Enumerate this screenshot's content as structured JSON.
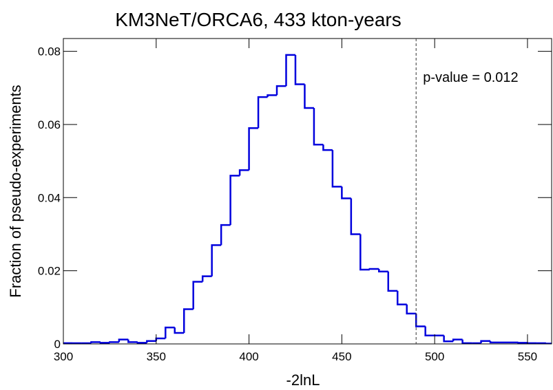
{
  "chart_data": {
    "type": "histogram",
    "title": "KM3NeT/ORCA6, 433 kton-years",
    "x_label": "-2lnL",
    "y_label": "Fraction of pseudo-experiments",
    "annotation": "p-value = 0.012",
    "marker_x": 490,
    "color": "#0000dd",
    "bins": [
      300,
      305,
      310,
      315,
      320,
      325,
      330,
      335,
      340,
      345,
      350,
      355,
      360,
      365,
      370,
      375,
      380,
      385,
      390,
      395,
      400,
      405,
      410,
      415,
      420,
      425,
      430,
      435,
      440,
      445,
      450,
      455,
      460,
      465,
      470,
      475,
      480,
      485,
      490,
      495,
      500,
      505,
      510,
      515,
      520,
      525,
      530,
      535,
      540,
      545,
      550,
      555,
      560,
      565
    ],
    "values": [
      0.0002,
      0.0002,
      0.0002,
      0.0005,
      0.0003,
      0.0005,
      0.0012,
      0.0005,
      0.0003,
      0.0008,
      0.0015,
      0.0045,
      0.003,
      0.0095,
      0.017,
      0.0185,
      0.027,
      0.0325,
      0.046,
      0.0475,
      0.059,
      0.0675,
      0.068,
      0.0705,
      0.079,
      0.071,
      0.0645,
      0.0545,
      0.053,
      0.043,
      0.0398,
      0.03,
      0.0203,
      0.0205,
      0.0198,
      0.0145,
      0.0108,
      0.0083,
      0.0048,
      0.0023,
      0.0023,
      0.0007,
      0.0012,
      0.0002,
      0.0002,
      0.0008,
      0.0004,
      0.0004,
      0.0004,
      0.0003,
      0.0002,
      0.0002,
      0.0001
    ],
    "xlim": [
      300,
      563
    ],
    "ylim": [
      0,
      0.0835
    ],
    "xticks": [
      300,
      350,
      400,
      450,
      500,
      550
    ],
    "yticks": [
      0,
      0.02,
      0.04,
      0.06,
      0.08
    ]
  }
}
